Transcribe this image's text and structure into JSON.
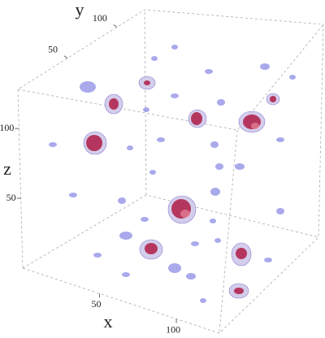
{
  "chart_data": {
    "type": "density3d",
    "xlabel": "x",
    "ylabel": "y",
    "zlabel": "z",
    "xlim": [
      0,
      128
    ],
    "ylim": [
      0,
      128
    ],
    "zlim": [
      0,
      128
    ],
    "xticks": [
      50,
      100
    ],
    "yticks": [
      50,
      100
    ],
    "zticks": [
      50,
      100
    ]
  }
}
